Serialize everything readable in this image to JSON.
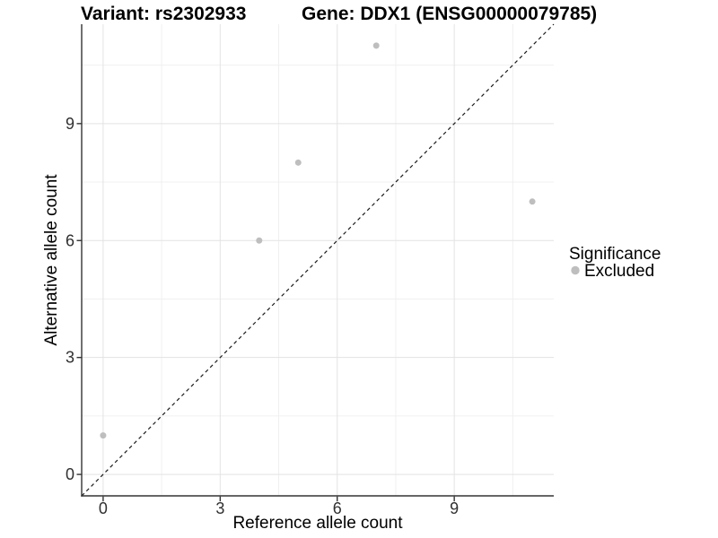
{
  "chart_data": {
    "type": "scatter",
    "title_left": "Variant: rs2302933",
    "title_right": "Gene: DDX1 (ENSG00000079785)",
    "xlabel": "Reference allele count",
    "ylabel": "Alternative allele count",
    "xlim": [
      -0.55,
      11.55
    ],
    "ylim": [
      -0.55,
      11.55
    ],
    "x_major_ticks": [
      0,
      3,
      6,
      9
    ],
    "y_major_ticks": [
      0,
      3,
      6,
      9
    ],
    "x_minor_ticks": [
      1.5,
      4.5,
      7.5,
      10.5
    ],
    "y_minor_ticks": [
      1.5,
      4.5,
      7.5,
      10.5
    ],
    "grid": "major+minor",
    "legend": {
      "title": "Significance",
      "position": "right",
      "items": [
        {
          "label": "Excluded",
          "color": "#BEBEBE"
        }
      ]
    },
    "series": [
      {
        "name": "Excluded",
        "color": "#BEBEBE",
        "points": [
          [
            0,
            1
          ],
          [
            4,
            6
          ],
          [
            5,
            8
          ],
          [
            7,
            11
          ],
          [
            11,
            7
          ]
        ]
      }
    ],
    "reference_line": {
      "kind": "identity y=x",
      "style": "dashed",
      "color": "#000000"
    },
    "colors": {
      "background": "#FFFFFF",
      "grid_major": "#E3E3E3",
      "grid_minor": "#F0F0F0",
      "axis": "#333333",
      "point": "#BEBEBE",
      "text": "#000000",
      "tick_text": "#303030"
    }
  }
}
